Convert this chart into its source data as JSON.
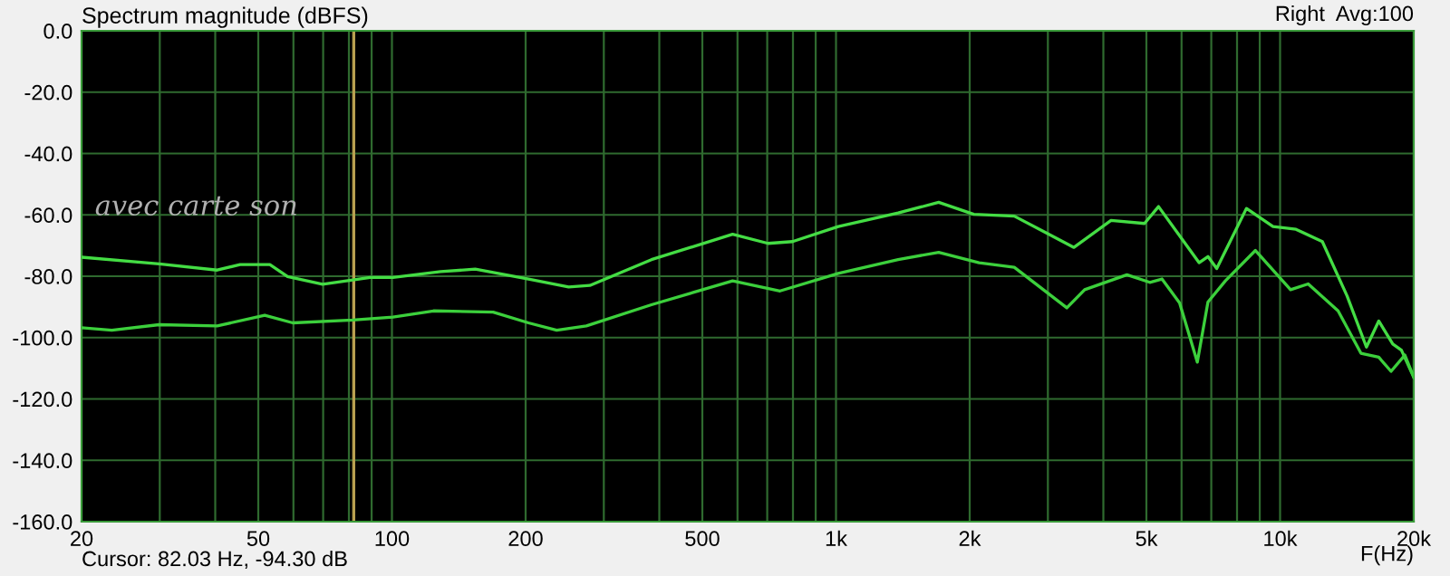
{
  "chart_data": {
    "type": "line",
    "title": "Spectrum magnitude (dBFS)",
    "xlabel": "F(Hz)",
    "log": "x",
    "grid": true,
    "line_style": "solid",
    "marker": "none",
    "xlim": [
      20,
      20000
    ],
    "xticks": [
      20,
      {
        "value": 30,
        "label": null
      },
      {
        "value": 40,
        "label": null
      },
      50,
      {
        "value": 60,
        "label": null
      },
      {
        "value": 70,
        "label": null
      },
      {
        "value": 80,
        "label": null
      },
      {
        "value": 90,
        "label": null
      },
      100,
      200,
      {
        "value": 300,
        "label": null
      },
      {
        "value": 400,
        "label": null
      },
      500,
      {
        "value": 600,
        "label": null
      },
      {
        "value": 700,
        "label": null
      },
      {
        "value": 800,
        "label": null
      },
      {
        "value": 900,
        "label": null
      },
      {
        "value": 1000,
        "label": "1k"
      },
      {
        "value": 2000,
        "label": "2k"
      },
      {
        "value": 3000,
        "label": null
      },
      {
        "value": 4000,
        "label": null
      },
      {
        "value": 5000,
        "label": "5k"
      },
      {
        "value": 6000,
        "label": null
      },
      {
        "value": 7000,
        "label": null
      },
      {
        "value": 8000,
        "label": null
      },
      {
        "value": 9000,
        "label": null
      },
      {
        "value": 10000,
        "label": "10k"
      },
      {
        "value": 20000,
        "label": "20k"
      }
    ],
    "ylim": [
      -160,
      0
    ],
    "yticks": [
      {
        "value": 0,
        "label": "0.0"
      },
      {
        "value": -20,
        "label": "-20.0"
      },
      {
        "value": -40,
        "label": "-40.0"
      },
      {
        "value": -60,
        "label": "-60.0"
      },
      {
        "value": -80,
        "label": "-80.0"
      },
      {
        "value": -100,
        "label": "-100.0"
      },
      {
        "value": -120,
        "label": "-120.0"
      },
      {
        "value": -140,
        "label": "-140.0"
      },
      {
        "value": -160,
        "label": "-160.0"
      }
    ],
    "ref_lines": [
      {
        "axis": "x",
        "value": 82.03,
        "color": "#b8a050"
      }
    ],
    "annotations": [
      "Cursor: 82.03 Hz, -94.30 dB",
      "Right  Avg:100",
      "avec carte son"
    ],
    "series": [
      {
        "color": "#44dd44",
        "x": [
          20,
          29.9,
          40.4,
          45.5,
          53.1,
          58.2,
          69.8,
          89.3,
          100.5,
          128.7,
          154,
          203,
          250,
          279,
          384,
          585,
          703,
          798,
          1012,
          1380,
          1703,
          2043,
          2520,
          3434,
          4162,
          4950,
          5325,
          6570,
          6880,
          7200,
          8400,
          9640,
          10860,
          12450,
          14150,
          15650,
          16680,
          17940,
          18760,
          20000
        ],
        "values": [
          -73.8,
          -76,
          -78,
          -76.2,
          -76.2,
          -80.1,
          -82.6,
          -80.4,
          -80.4,
          -78.5,
          -77.7,
          -80.9,
          -83.5,
          -83,
          -74.6,
          -66.3,
          -69.3,
          -68.7,
          -63.8,
          -59.4,
          -55.9,
          -59.8,
          -60.4,
          -70.6,
          -61.8,
          -62.8,
          -57.3,
          -75.6,
          -73.6,
          -77.5,
          -57.9,
          -63.8,
          -64.7,
          -68.7,
          -86.4,
          -103.1,
          -94.6,
          -102.1,
          -104.1,
          -112.9
        ]
      },
      {
        "color": "#3cd03c",
        "x": [
          20,
          23.4,
          29.9,
          40.4,
          51.7,
          59.8,
          81.5,
          100.5,
          124,
          169,
          203,
          235,
          274,
          384,
          585,
          748,
          1012,
          1380,
          1703,
          2100,
          2520,
          3310,
          3630,
          4520,
          5090,
          5420,
          5940,
          6510,
          6880,
          7530,
          8800,
          10560,
          11570,
          13510,
          15210,
          16680,
          17780,
          19100,
          20000
        ],
        "values": [
          -96.8,
          -97.6,
          -95.8,
          -96.2,
          -92.7,
          -95.2,
          -94.3,
          -93.3,
          -91.3,
          -91.7,
          -95.2,
          -97.6,
          -96.2,
          -89.3,
          -81.5,
          -84.8,
          -79.1,
          -74.6,
          -72.2,
          -75.6,
          -77.1,
          -90.3,
          -84.4,
          -79.5,
          -82,
          -80.9,
          -88.7,
          -108,
          -88.4,
          -81.5,
          -71.6,
          -84.4,
          -82.5,
          -91.3,
          -105.1,
          -106.4,
          -111,
          -105.7,
          -112.9
        ]
      }
    ]
  }
}
